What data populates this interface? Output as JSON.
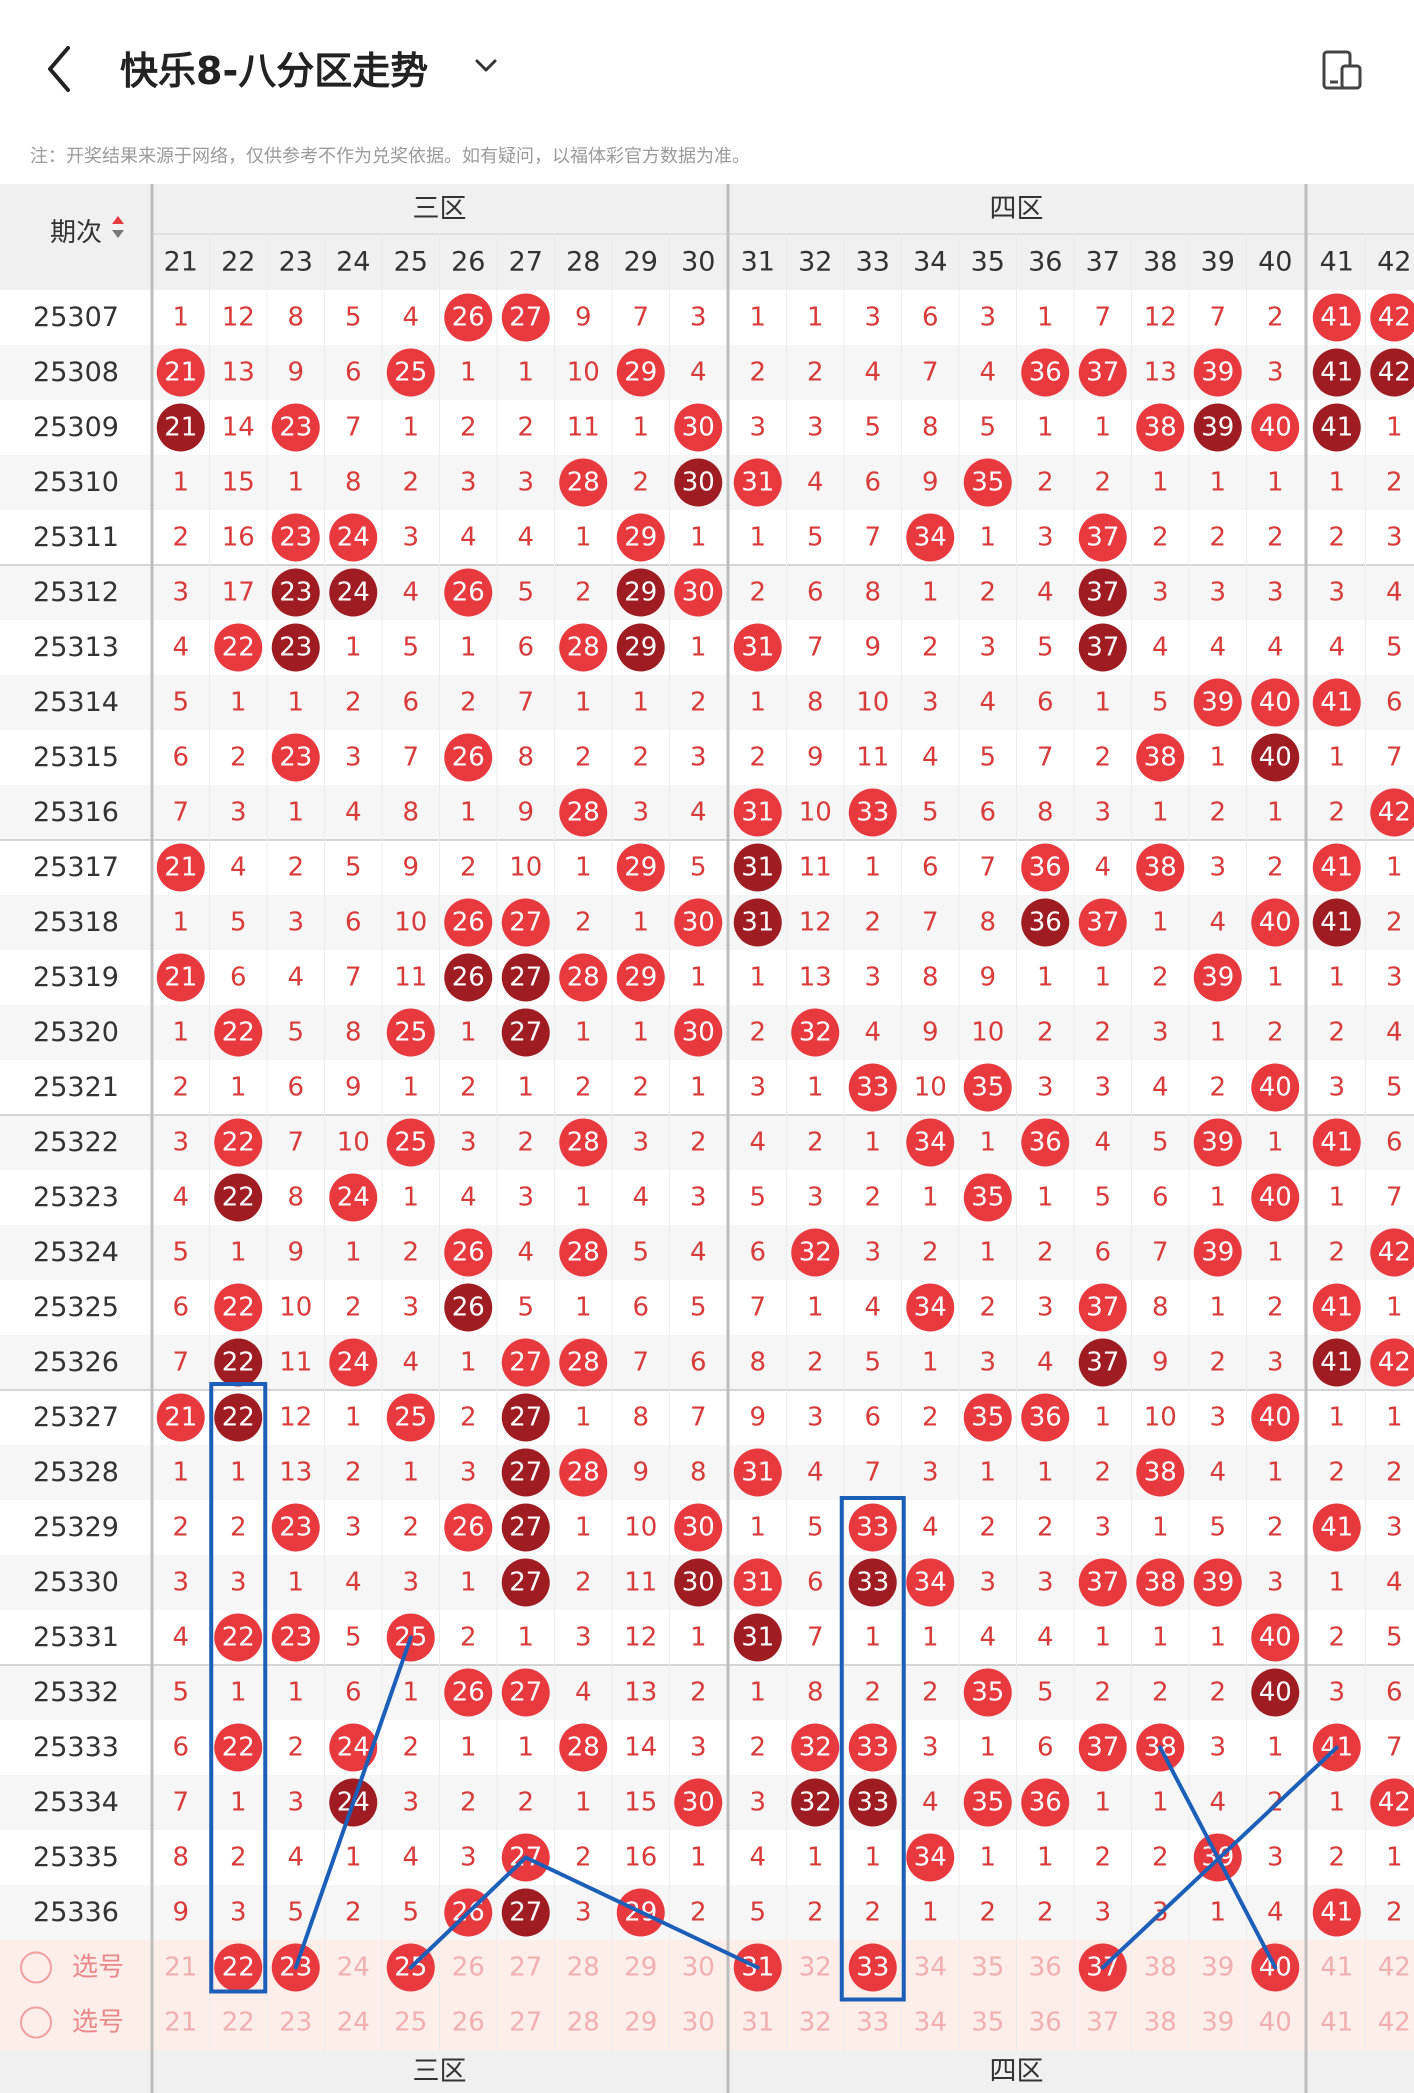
{
  "header": {
    "title": "快乐8-八分区走势",
    "back_icon": "back-arrow-icon",
    "dropdown_icon": "chevron-down-icon",
    "device_icon": "display-mode-icon"
  },
  "note": "注：开奖结果来源于网络，仅供参考不作为兑奖依据。如有疑问，以福体彩官方数据为准。",
  "table": {
    "period_header": "期次",
    "sort_icon": "sort-arrows-icon",
    "zones": [
      {
        "label": "三区",
        "columns": [
          21,
          22,
          23,
          24,
          25,
          26,
          27,
          28,
          29,
          30
        ]
      },
      {
        "label": "四区",
        "columns": [
          31,
          32,
          33,
          34,
          35,
          36,
          37,
          38,
          39,
          40
        ]
      }
    ],
    "extra_columns": [
      41,
      42
    ],
    "footer_zones": [
      "三区",
      "四区"
    ],
    "select_label": "选号",
    "rows": [
      {
        "period": "25307",
        "cells": [
          "1",
          "12",
          "8",
          "5",
          "4",
          "26",
          "27",
          "9",
          "7",
          "3",
          "1",
          "1",
          "3",
          "6",
          "3",
          "1",
          "7",
          "12",
          "7",
          "2",
          "41",
          "42"
        ]
      },
      {
        "period": "25308",
        "cells": [
          "21",
          "13",
          "9",
          "6",
          "25",
          "1",
          "1",
          "10",
          "29",
          "4",
          "2",
          "2",
          "4",
          "7",
          "4",
          "36",
          "37",
          "13",
          "39",
          "3",
          "41",
          "42"
        ]
      },
      {
        "period": "25309",
        "cells": [
          "21",
          "14",
          "23",
          "7",
          "1",
          "2",
          "2",
          "11",
          "1",
          "30",
          "3",
          "3",
          "5",
          "8",
          "5",
          "1",
          "1",
          "38",
          "39",
          "40",
          "41",
          "1"
        ]
      },
      {
        "period": "25310",
        "cells": [
          "1",
          "15",
          "1",
          "8",
          "2",
          "3",
          "3",
          "28",
          "2",
          "30",
          "31",
          "4",
          "6",
          "9",
          "35",
          "2",
          "2",
          "1",
          "1",
          "1",
          "1",
          "2"
        ]
      },
      {
        "period": "25311",
        "cells": [
          "2",
          "16",
          "23",
          "24",
          "3",
          "4",
          "4",
          "1",
          "29",
          "1",
          "1",
          "5",
          "7",
          "34",
          "1",
          "3",
          "37",
          "2",
          "2",
          "2",
          "2",
          "3"
        ]
      },
      {
        "period": "25312",
        "cells": [
          "3",
          "17",
          "23",
          "24",
          "4",
          "26",
          "5",
          "2",
          "29",
          "30",
          "2",
          "6",
          "8",
          "1",
          "2",
          "4",
          "37",
          "3",
          "3",
          "3",
          "3",
          "4"
        ]
      },
      {
        "period": "25313",
        "cells": [
          "4",
          "22",
          "23",
          "1",
          "5",
          "1",
          "6",
          "28",
          "29",
          "1",
          "31",
          "7",
          "9",
          "2",
          "3",
          "5",
          "37",
          "4",
          "4",
          "4",
          "4",
          "5"
        ]
      },
      {
        "period": "25314",
        "cells": [
          "5",
          "1",
          "1",
          "2",
          "6",
          "2",
          "7",
          "1",
          "1",
          "2",
          "1",
          "8",
          "10",
          "3",
          "4",
          "6",
          "1",
          "5",
          "39",
          "40",
          "41",
          "6"
        ]
      },
      {
        "period": "25315",
        "cells": [
          "6",
          "2",
          "23",
          "3",
          "7",
          "26",
          "8",
          "2",
          "2",
          "3",
          "2",
          "9",
          "11",
          "4",
          "5",
          "7",
          "2",
          "38",
          "1",
          "40",
          "1",
          "7"
        ]
      },
      {
        "period": "25316",
        "cells": [
          "7",
          "3",
          "1",
          "4",
          "8",
          "1",
          "9",
          "28",
          "3",
          "4",
          "31",
          "10",
          "33",
          "5",
          "6",
          "8",
          "3",
          "1",
          "2",
          "1",
          "2",
          "42"
        ]
      },
      {
        "period": "25317",
        "cells": [
          "21",
          "4",
          "2",
          "5",
          "9",
          "2",
          "10",
          "1",
          "29",
          "5",
          "31",
          "11",
          "1",
          "6",
          "7",
          "36",
          "4",
          "38",
          "3",
          "2",
          "41",
          "1"
        ]
      },
      {
        "period": "25318",
        "cells": [
          "1",
          "5",
          "3",
          "6",
          "10",
          "26",
          "27",
          "2",
          "1",
          "30",
          "31",
          "12",
          "2",
          "7",
          "8",
          "36",
          "37",
          "1",
          "4",
          "40",
          "41",
          "2"
        ]
      },
      {
        "period": "25319",
        "cells": [
          "21",
          "6",
          "4",
          "7",
          "11",
          "26",
          "27",
          "28",
          "29",
          "1",
          "1",
          "13",
          "3",
          "8",
          "9",
          "1",
          "1",
          "2",
          "39",
          "1",
          "1",
          "3"
        ]
      },
      {
        "period": "25320",
        "cells": [
          "1",
          "22",
          "5",
          "8",
          "25",
          "1",
          "27",
          "1",
          "1",
          "30",
          "2",
          "32",
          "4",
          "9",
          "10",
          "2",
          "2",
          "3",
          "1",
          "2",
          "2",
          "4"
        ]
      },
      {
        "period": "25321",
        "cells": [
          "2",
          "1",
          "6",
          "9",
          "1",
          "2",
          "1",
          "2",
          "2",
          "1",
          "3",
          "1",
          "33",
          "10",
          "35",
          "3",
          "3",
          "4",
          "2",
          "40",
          "3",
          "5"
        ]
      },
      {
        "period": "25322",
        "cells": [
          "3",
          "22",
          "7",
          "10",
          "25",
          "3",
          "2",
          "28",
          "3",
          "2",
          "4",
          "2",
          "1",
          "34",
          "1",
          "36",
          "4",
          "5",
          "39",
          "1",
          "41",
          "6"
        ]
      },
      {
        "period": "25323",
        "cells": [
          "4",
          "22",
          "8",
          "24",
          "1",
          "4",
          "3",
          "1",
          "4",
          "3",
          "5",
          "3",
          "2",
          "1",
          "35",
          "1",
          "5",
          "6",
          "1",
          "40",
          "1",
          "7"
        ]
      },
      {
        "period": "25324",
        "cells": [
          "5",
          "1",
          "9",
          "1",
          "2",
          "26",
          "4",
          "28",
          "5",
          "4",
          "6",
          "32",
          "3",
          "2",
          "1",
          "2",
          "6",
          "7",
          "39",
          "1",
          "2",
          "42"
        ]
      },
      {
        "period": "25325",
        "cells": [
          "6",
          "22",
          "10",
          "2",
          "3",
          "26",
          "5",
          "1",
          "6",
          "5",
          "7",
          "1",
          "4",
          "34",
          "2",
          "3",
          "37",
          "8",
          "1",
          "2",
          "41",
          "1"
        ]
      },
      {
        "period": "25326",
        "cells": [
          "7",
          "22",
          "11",
          "24",
          "4",
          "1",
          "27",
          "28",
          "7",
          "6",
          "8",
          "2",
          "5",
          "1",
          "3",
          "4",
          "37",
          "9",
          "2",
          "3",
          "41",
          "42"
        ]
      },
      {
        "period": "25327",
        "cells": [
          "21",
          "22",
          "12",
          "1",
          "25",
          "2",
          "27",
          "1",
          "8",
          "7",
          "9",
          "3",
          "6",
          "2",
          "35",
          "36",
          "1",
          "10",
          "3",
          "40",
          "1",
          "1"
        ]
      },
      {
        "period": "25328",
        "cells": [
          "1",
          "1",
          "13",
          "2",
          "1",
          "3",
          "27",
          "28",
          "9",
          "8",
          "31",
          "4",
          "7",
          "3",
          "1",
          "1",
          "2",
          "38",
          "4",
          "1",
          "2",
          "2"
        ]
      },
      {
        "period": "25329",
        "cells": [
          "2",
          "2",
          "23",
          "3",
          "2",
          "26",
          "27",
          "1",
          "10",
          "30",
          "1",
          "5",
          "33",
          "4",
          "2",
          "2",
          "3",
          "1",
          "5",
          "2",
          "41",
          "3"
        ]
      },
      {
        "period": "25330",
        "cells": [
          "3",
          "3",
          "1",
          "4",
          "3",
          "1",
          "27",
          "2",
          "11",
          "30",
          "31",
          "6",
          "33",
          "34",
          "3",
          "3",
          "37",
          "38",
          "39",
          "3",
          "1",
          "4"
        ]
      },
      {
        "period": "25331",
        "cells": [
          "4",
          "22",
          "23",
          "5",
          "25",
          "2",
          "1",
          "3",
          "12",
          "1",
          "31",
          "7",
          "1",
          "1",
          "4",
          "4",
          "1",
          "1",
          "1",
          "40",
          "2",
          "5"
        ]
      },
      {
        "period": "25332",
        "cells": [
          "5",
          "1",
          "1",
          "6",
          "1",
          "26",
          "27",
          "4",
          "13",
          "2",
          "1",
          "8",
          "2",
          "2",
          "35",
          "5",
          "2",
          "2",
          "2",
          "40",
          "3",
          "6"
        ]
      },
      {
        "period": "25333",
        "cells": [
          "6",
          "22",
          "2",
          "24",
          "2",
          "1",
          "1",
          "28",
          "14",
          "3",
          "2",
          "32",
          "33",
          "3",
          "1",
          "6",
          "37",
          "38",
          "3",
          "1",
          "41",
          "7"
        ]
      },
      {
        "period": "25334",
        "cells": [
          "7",
          "1",
          "3",
          "24",
          "3",
          "2",
          "2",
          "1",
          "15",
          "30",
          "3",
          "32",
          "33",
          "4",
          "35",
          "36",
          "1",
          "1",
          "4",
          "2",
          "1",
          "42"
        ]
      },
      {
        "period": "25335",
        "cells": [
          "8",
          "2",
          "4",
          "1",
          "4",
          "3",
          "27",
          "2",
          "16",
          "1",
          "4",
          "1",
          "1",
          "34",
          "1",
          "1",
          "2",
          "2",
          "39",
          "3",
          "2",
          "1"
        ]
      },
      {
        "period": "25336",
        "cells": [
          "9",
          "3",
          "5",
          "2",
          "5",
          "26",
          "27",
          "3",
          "29",
          "2",
          "5",
          "2",
          "2",
          "1",
          "2",
          "2",
          "3",
          "3",
          "1",
          "4",
          "41",
          "2"
        ]
      }
    ],
    "select_rows": [
      [
        "21",
        "22",
        "23",
        "24",
        "25",
        "26",
        "27",
        "28",
        "29",
        "30",
        "31",
        "32",
        "33",
        "34",
        "35",
        "36",
        "37",
        "38",
        "39",
        "40",
        "41",
        "42"
      ],
      [
        "21",
        "22",
        "23",
        "24",
        "25",
        "26",
        "27",
        "28",
        "29",
        "30",
        "31",
        "32",
        "33",
        "34",
        "35",
        "36",
        "37",
        "38",
        "39",
        "40",
        "41",
        "42"
      ]
    ]
  },
  "colors": {
    "red": "#e8393f",
    "dark_red": "#9e1c22",
    "blue_annotation": "#1c5fb8",
    "cell_text": "#d93a3a",
    "zone_header_bg": "#f0f0f0"
  }
}
